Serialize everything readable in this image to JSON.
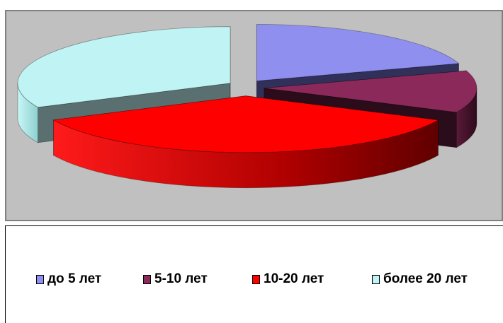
{
  "chart_data": {
    "type": "pie",
    "style": "3d-exploded",
    "categories": [
      "до 5 лет",
      "5-10 лет",
      "10-20 лет",
      "более 20 лет"
    ],
    "values": [
      20,
      12,
      36,
      32
    ],
    "value_unit": "percent (estimated)",
    "colors": [
      "#8f8ff0",
      "#8b2a5a",
      "#ff0000",
      "#c0f4f4"
    ],
    "title": "",
    "legend_position": "bottom"
  },
  "legend": {
    "items": [
      "до 5 лет",
      "5-10 лет",
      "10-20 лет",
      "более 20 лет"
    ]
  },
  "background_color": "#c0c0c0"
}
